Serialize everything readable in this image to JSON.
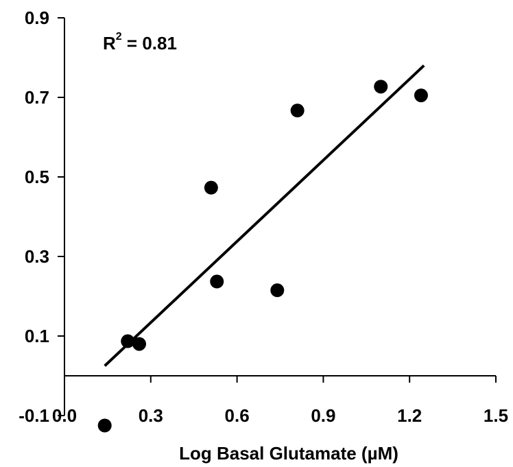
{
  "chart_data": {
    "type": "scatter",
    "title": "",
    "xlabel": "Log Basal Glutamate (µM)",
    "ylabel": "",
    "xlim": [
      0.0,
      1.5
    ],
    "ylim": [
      -0.1,
      0.9
    ],
    "x_ticks": [
      0.0,
      0.3,
      0.6,
      0.9,
      1.2,
      1.5
    ],
    "x_tick_labels": [
      "0.0",
      "0.3",
      "0.6",
      "0.9",
      "1.2",
      "1.5"
    ],
    "y_ticks": [
      -0.1,
      0.1,
      0.3,
      0.5,
      0.7,
      0.9
    ],
    "y_tick_labels": [
      "-0.1",
      "0.1",
      "0.3",
      "0.5",
      "0.7",
      "0.9"
    ],
    "grid": false,
    "legend": "none",
    "annotation": {
      "base": "R",
      "sup": "2",
      "rest": " = 0.81"
    },
    "points": [
      {
        "x": 0.14,
        "y": -0.125
      },
      {
        "x": 0.22,
        "y": 0.087
      },
      {
        "x": 0.26,
        "y": 0.08
      },
      {
        "x": 0.51,
        "y": 0.473
      },
      {
        "x": 0.53,
        "y": 0.237
      },
      {
        "x": 0.74,
        "y": 0.215
      },
      {
        "x": 0.81,
        "y": 0.667
      },
      {
        "x": 1.1,
        "y": 0.727
      },
      {
        "x": 1.24,
        "y": 0.705
      }
    ],
    "trendline": {
      "x": [
        0.14,
        1.25
      ],
      "y": [
        0.025,
        0.78
      ]
    },
    "colors": {
      "marker": "#000000",
      "line": "#000000",
      "axis": "#000000"
    }
  }
}
